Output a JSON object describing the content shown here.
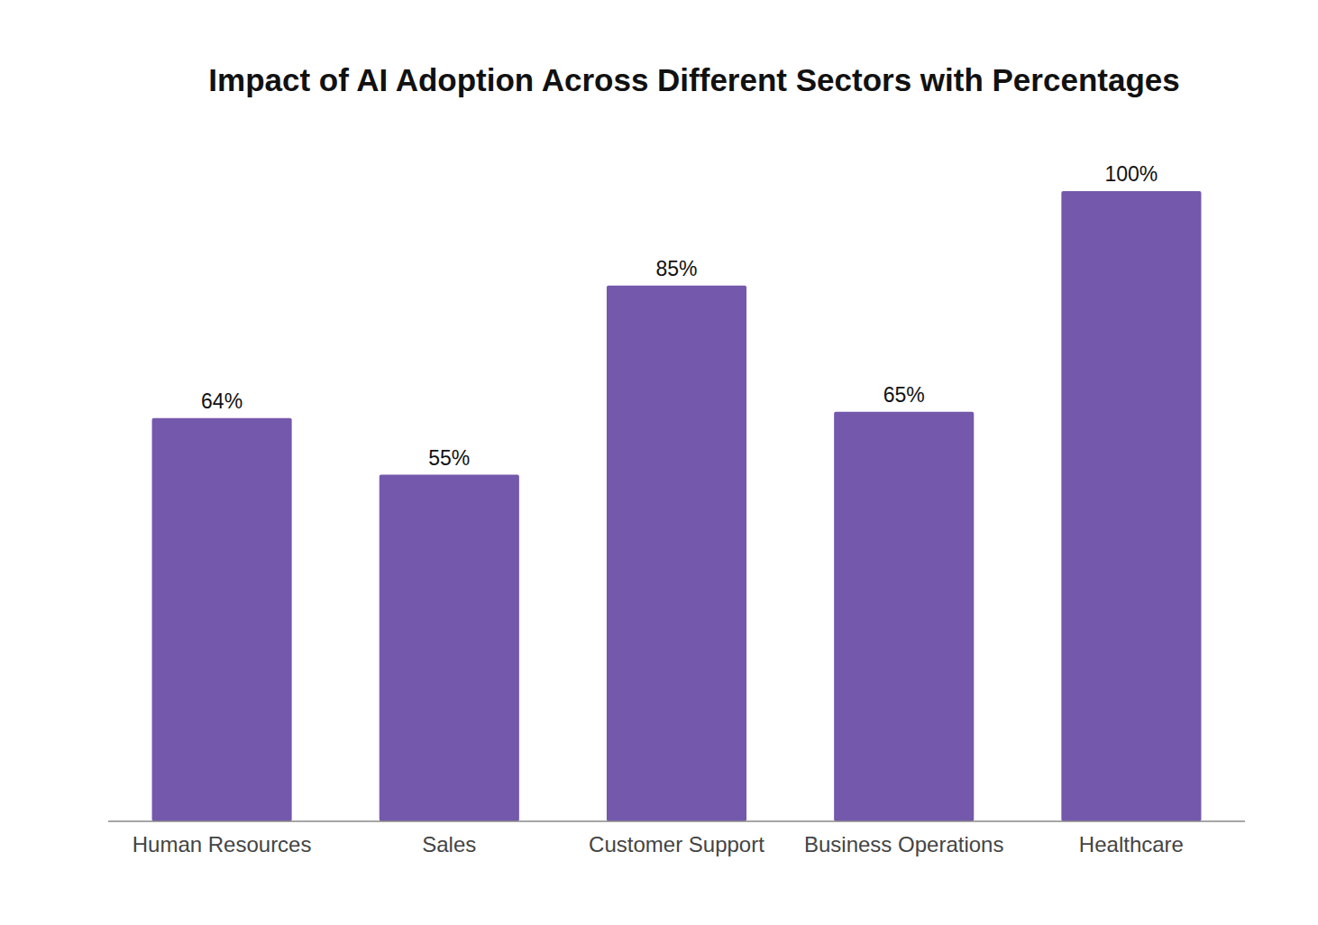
{
  "chart_data": {
    "type": "bar",
    "title": "Impact of AI Adoption Across Different Sectors with Percentages",
    "categories": [
      "Human Resources",
      "Sales",
      "Customer Support",
      "Business Operations",
      "Healthcare"
    ],
    "values": [
      64,
      55,
      85,
      65,
      100
    ],
    "value_labels": [
      "64%",
      "55%",
      "85%",
      "65%",
      "100%"
    ],
    "color": "#7458ab",
    "ylim": [
      0,
      100
    ],
    "data_labels": true,
    "tick_labels": "x",
    "grid": false
  }
}
